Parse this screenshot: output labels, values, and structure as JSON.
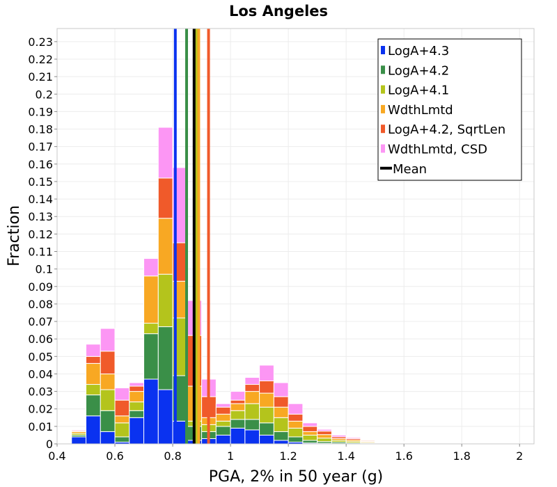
{
  "chart_data": {
    "type": "bar",
    "stacked": true,
    "title": "Los Angeles",
    "xlabel": "PGA, 2% in 50 year (g)",
    "ylabel": "Fraction",
    "xlim": [
      0.4,
      2.05
    ],
    "ylim": [
      0,
      0.2375
    ],
    "x_ticks": [
      "0.4",
      "0.6",
      "0.8",
      "1",
      "1.2",
      "1.4",
      "1.6",
      "1.8",
      "2"
    ],
    "y_ticks": [
      "0",
      "0.01",
      "0.02",
      "0.03",
      "0.04",
      "0.05",
      "0.06",
      "0.07",
      "0.08",
      "0.09",
      "0.1",
      "0.11",
      "0.12",
      "0.13",
      "0.14",
      "0.15",
      "0.16",
      "0.17",
      "0.18",
      "0.19",
      "0.2",
      "0.21",
      "0.22",
      "0.23"
    ],
    "grid": true,
    "legend_position": "top-right",
    "bin_width": 0.05,
    "bin_starts": [
      0.45,
      0.5,
      0.55,
      0.6,
      0.65,
      0.7,
      0.75,
      0.8,
      0.85,
      0.9,
      0.95,
      1.0,
      1.05,
      1.1,
      1.15,
      1.2,
      1.25,
      1.3,
      1.35,
      1.4,
      1.45,
      1.5,
      1.55,
      1.6,
      1.65,
      1.7,
      1.75,
      1.8,
      1.85,
      1.9,
      1.95,
      2.0
    ],
    "series": [
      {
        "name": "LogA+4.3",
        "color": "#0a32f0",
        "values": [
          0.004,
          0.016,
          0.007,
          0.001,
          0.015,
          0.037,
          0.031,
          0.013,
          0.002,
          0.003,
          0.005,
          0.009,
          0.008,
          0.005,
          0.002,
          0.001,
          0.0005,
          0.0003,
          0.0002,
          0.0001,
          0,
          0,
          0,
          0,
          0,
          0,
          0,
          0,
          0,
          0,
          0,
          0
        ]
      },
      {
        "name": "LogA+4.2",
        "color": "#3a8f48",
        "values": [
          0.001,
          0.012,
          0.012,
          0.003,
          0.004,
          0.026,
          0.036,
          0.026,
          0.008,
          0.004,
          0.005,
          0.005,
          0.006,
          0.007,
          0.005,
          0.003,
          0.0015,
          0.001,
          0.0008,
          0.0005,
          0.0004,
          0.0002,
          0.0002,
          0.0001,
          0.0001,
          0,
          0,
          0,
          0,
          0,
          0,
          0
        ]
      },
      {
        "name": "LogA+4.1",
        "color": "#b4c41c",
        "values": [
          0.001,
          0.006,
          0.012,
          0.008,
          0.005,
          0.006,
          0.03,
          0.033,
          0.003,
          0.004,
          0.003,
          0.005,
          0.009,
          0.009,
          0.008,
          0.005,
          0.003,
          0.002,
          0.001,
          0.0008,
          0.0005,
          0.0003,
          0.0002,
          0.0001,
          0.0001,
          0.0001,
          0,
          0,
          0,
          0,
          0,
          0
        ]
      },
      {
        "name": "WdthLmtd",
        "color": "#f8a823",
        "values": [
          0.001,
          0.012,
          0.009,
          0.004,
          0.006,
          0.027,
          0.032,
          0.021,
          0.02,
          0.004,
          0.004,
          0.004,
          0.007,
          0.008,
          0.006,
          0.004,
          0.002,
          0.002,
          0.001,
          0.0008,
          0.0005,
          0.0004,
          0.0003,
          0.0002,
          0.0001,
          0.0001,
          0,
          0,
          0,
          0,
          0,
          0
        ]
      },
      {
        "name": "LogA+4.2, SqrtLen",
        "color": "#f05a2a",
        "values": [
          0.0005,
          0.004,
          0.013,
          0.009,
          0.003,
          0,
          0.023,
          0.022,
          0.029,
          0.012,
          0.004,
          0.002,
          0.004,
          0.007,
          0.006,
          0.004,
          0.003,
          0.002,
          0.001,
          0.0008,
          0.0005,
          0.0004,
          0.0003,
          0.0003,
          0.0002,
          0.0001,
          0.0001,
          0.0001,
          0,
          0,
          0,
          0
        ]
      },
      {
        "name": "WdthLmtd, CSD",
        "color": "#fc96f4",
        "values": [
          0.0005,
          0.007,
          0.013,
          0.007,
          0.002,
          0.01,
          0.029,
          0.043,
          0.02,
          0.01,
          0.002,
          0.005,
          0.004,
          0.009,
          0.008,
          0.006,
          0.002,
          0.001,
          0.001,
          0.0006,
          0.0004,
          0.0003,
          0.0003,
          0.0002,
          0.0002,
          0.0001,
          0.0001,
          0.0001,
          0.0001,
          0.0001,
          0,
          0
        ]
      }
    ],
    "mean_lines": [
      {
        "series": "LogA+4.3",
        "color": "#0a32f0",
        "x": 0.809
      },
      {
        "series": "LogA+4.2",
        "color": "#3a8f48",
        "x": 0.848
      },
      {
        "series": "LogA+4.1",
        "color": "#b4c41c",
        "x": 0.882
      },
      {
        "series": "WdthLmtd",
        "color": "#f8a823",
        "x": 0.89
      },
      {
        "series": "LogA+4.2, SqrtLen",
        "color": "#f05a2a",
        "x": 0.924
      },
      {
        "series": "Mean",
        "color": "#000000",
        "x": 0.874
      }
    ],
    "legend": [
      {
        "label": "LogA+4.3",
        "color": "#0a32f0",
        "kind": "square"
      },
      {
        "label": "LogA+4.2",
        "color": "#3a8f48",
        "kind": "square"
      },
      {
        "label": "LogA+4.1",
        "color": "#b4c41c",
        "kind": "square"
      },
      {
        "label": "WdthLmtd",
        "color": "#f8a823",
        "kind": "square"
      },
      {
        "label": "LogA+4.2, SqrtLen",
        "color": "#f05a2a",
        "kind": "square"
      },
      {
        "label": "WdthLmtd, CSD",
        "color": "#fc96f4",
        "kind": "square"
      },
      {
        "label": "Mean",
        "color": "#000000",
        "kind": "line"
      }
    ]
  }
}
